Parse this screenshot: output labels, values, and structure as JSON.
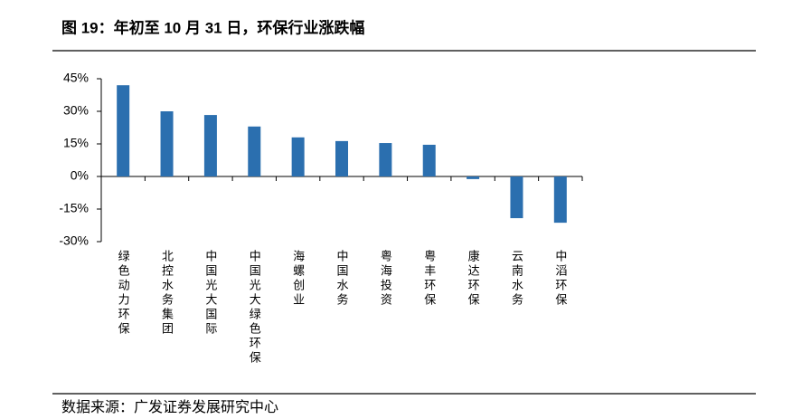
{
  "chart_data": {
    "type": "bar",
    "title": "图 19：年初至 10 月 31 日，环保行业涨跌幅",
    "source": "数据来源：广发证券发展研究中心",
    "categories": [
      "绿色动力环保",
      "北控水务集团",
      "中国光大国际",
      "中国光大绿色环保",
      "海螺创业",
      "中国水务",
      "粤海投资",
      "粤丰环保",
      "康达环保",
      "云南水务",
      "中滔环保"
    ],
    "values": [
      42,
      30,
      28.3,
      23,
      18,
      16.3,
      15.4,
      14.6,
      -1.2,
      -19.2,
      -21.3
    ],
    "color": "#2b6faf",
    "ylim": [
      -30,
      45
    ],
    "yticks": [
      {
        "value": -30,
        "label": "-30%"
      },
      {
        "value": -15,
        "label": "-15%"
      },
      {
        "value": 0,
        "label": "0%"
      },
      {
        "value": 15,
        "label": "15%"
      },
      {
        "value": 30,
        "label": "30%"
      },
      {
        "value": 45,
        "label": "45%"
      }
    ]
  }
}
